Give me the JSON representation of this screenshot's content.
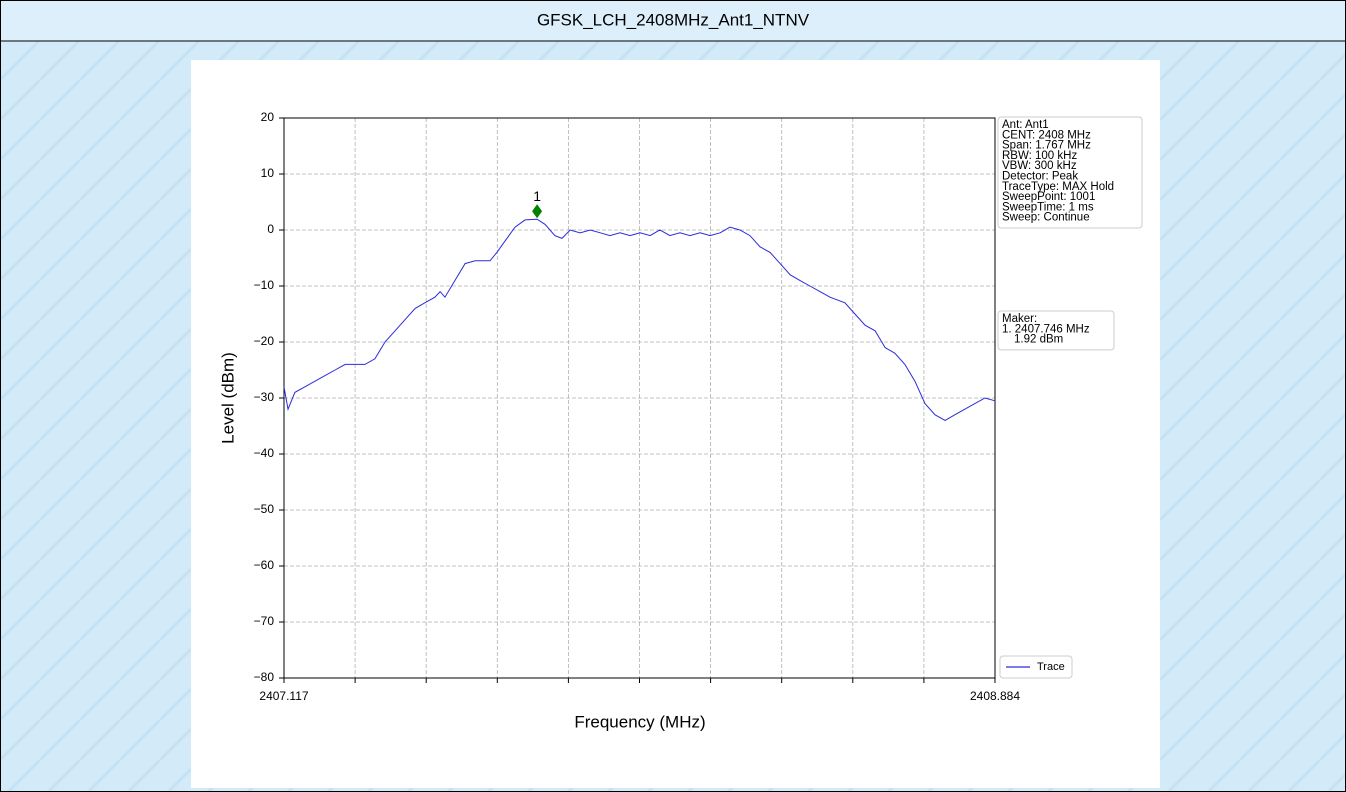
{
  "header": {
    "title": "GFSK_LCH_2408MHz_Ant1_NTNV"
  },
  "chart_data": {
    "type": "line",
    "xlabel": "Frequency (MHz)",
    "ylabel": "Level (dBm)",
    "xlim": [
      2407.117,
      2408.884
    ],
    "ylim": [
      -80,
      20
    ],
    "xticks": [
      2407.117,
      2408.884
    ],
    "x_minor_ticks": [
      2407.2937,
      2407.4704,
      2407.6471,
      2407.8238,
      2408.0005,
      2408.1772,
      2408.3539,
      2408.5306,
      2408.7073
    ],
    "yticks": [
      {
        "value": -80,
        "label": "−80"
      },
      {
        "value": -70,
        "label": "−70"
      },
      {
        "value": -60,
        "label": "−60"
      },
      {
        "value": -50,
        "label": "−50"
      },
      {
        "value": -40,
        "label": "−40"
      },
      {
        "value": -30,
        "label": "−30"
      },
      {
        "value": -20,
        "label": "−20"
      },
      {
        "value": -10,
        "label": "−10"
      },
      0,
      10,
      20
    ],
    "grid": true,
    "legend": "lower right",
    "series": [
      {
        "name": "Trace",
        "color": "#2b2bdc",
        "x": [
          2407.117,
          2407.127,
          2407.144,
          2407.169,
          2407.194,
          2407.219,
          2407.244,
          2407.269,
          2407.293,
          2407.318,
          2407.343,
          2407.368,
          2407.393,
          2407.418,
          2407.443,
          2407.467,
          2407.492,
          2407.505,
          2407.517,
          2407.542,
          2407.567,
          2407.592,
          2407.629,
          2407.646,
          2407.666,
          2407.691,
          2407.716,
          2407.746,
          2407.766,
          2407.79,
          2407.808,
          2407.828,
          2407.853,
          2407.878,
          2407.903,
          2407.927,
          2407.952,
          2407.977,
          2408.002,
          2408.027,
          2408.051,
          2408.076,
          2408.101,
          2408.126,
          2408.151,
          2408.176,
          2408.201,
          2408.225,
          2408.25,
          2408.275,
          2408.3,
          2408.325,
          2408.35,
          2408.375,
          2408.399,
          2408.424,
          2408.449,
          2408.474,
          2408.511,
          2408.536,
          2408.561,
          2408.586,
          2408.611,
          2408.635,
          2408.66,
          2408.685,
          2408.71,
          2408.735,
          2408.76,
          2408.784,
          2408.809,
          2408.834,
          2408.859,
          2408.884
        ],
        "values": [
          -28,
          -32,
          -29,
          -28,
          -27,
          -26,
          -25,
          -24,
          -24,
          -24,
          -23,
          -20,
          -18,
          -16,
          -14,
          -13,
          -12,
          -11,
          -12,
          -9,
          -6,
          -5.5,
          -5.5,
          -4,
          -2,
          0.5,
          1.8,
          1.92,
          1,
          -1,
          -1.5,
          0,
          -0.5,
          0,
          -0.5,
          -1,
          -0.5,
          -1,
          -0.5,
          -1,
          0,
          -1,
          -0.5,
          -1,
          -0.5,
          -1,
          -0.5,
          0.5,
          0,
          -1,
          -3,
          -4,
          -6,
          -8,
          -9,
          -10,
          -11,
          -12,
          -13,
          -15,
          -17,
          -18,
          -21,
          -22,
          -24,
          -27,
          -31,
          -33,
          -34,
          -33,
          -32,
          -31,
          -30,
          -30.5
        ]
      }
    ],
    "marker": {
      "label": "1",
      "x": 2407.746,
      "value": 1.92,
      "color": "#008000"
    },
    "info_box": [
      "Ant: Ant1",
      "CENT: 2408 MHz",
      "Span: 1.767 MHz",
      "RBW: 100 kHz",
      "VBW: 300 kHz",
      "Detector: Peak",
      "TraceType: MAX Hold",
      "SweepPoint: 1001",
      "SweepTime: 1 ms",
      "Sweep: Continue"
    ],
    "marker_box": [
      "Maker:",
      "1. 2407.746 MHz",
      "1.92 dBm"
    ]
  }
}
